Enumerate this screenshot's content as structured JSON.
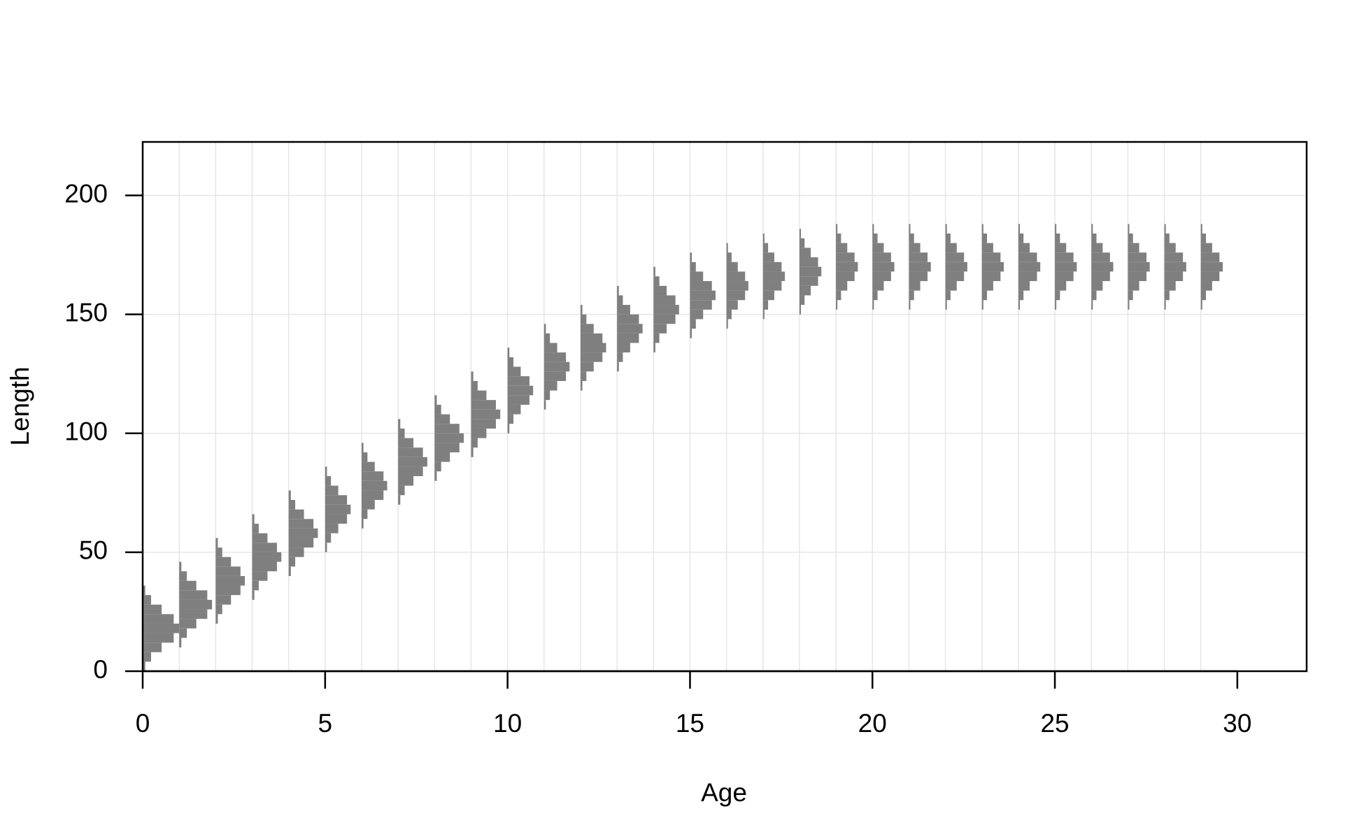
{
  "chart_data": {
    "type": "age-length-histograms",
    "x_label": "Age",
    "y_label": "Length",
    "xlim": [
      0,
      31.9
    ],
    "ylim": [
      0,
      222.5
    ],
    "xticks": [
      0,
      5,
      10,
      15,
      20,
      25,
      30
    ],
    "yticks": [
      0,
      50,
      100,
      150,
      200
    ],
    "grid": true,
    "color": "#7f7f7f",
    "series": [
      {
        "x": 0,
        "bins": [
          0,
          4,
          8,
          12,
          16,
          20,
          24,
          28,
          32,
          36
        ],
        "values": [
          0.07,
          0.23,
          0.52,
          0.85,
          1,
          0.85,
          0.52,
          0.23,
          0.07
        ]
      },
      {
        "x": 1,
        "bins": [
          10,
          14,
          18,
          22,
          26,
          30,
          34,
          38,
          42,
          46
        ],
        "values": [
          0.06,
          0.21,
          0.47,
          0.77,
          0.9,
          0.77,
          0.47,
          0.21,
          0.06
        ]
      },
      {
        "x": 2,
        "bins": [
          20,
          24,
          28,
          32,
          36,
          40,
          44,
          48,
          52,
          56
        ],
        "values": [
          0.06,
          0.18,
          0.42,
          0.68,
          0.8,
          0.68,
          0.42,
          0.18,
          0.06
        ]
      },
      {
        "x": 3,
        "bins": [
          30,
          34,
          38,
          42,
          46,
          50,
          54,
          58,
          62,
          66
        ],
        "values": [
          0.06,
          0.18,
          0.42,
          0.68,
          0.8,
          0.68,
          0.42,
          0.18,
          0.06
        ]
      },
      {
        "x": 4,
        "bins": [
          40,
          44,
          48,
          52,
          56,
          60,
          64,
          68,
          72,
          76
        ],
        "values": [
          0.06,
          0.18,
          0.42,
          0.68,
          0.8,
          0.68,
          0.42,
          0.18,
          0.06
        ]
      },
      {
        "x": 5,
        "bins": [
          50,
          54,
          58,
          62,
          66,
          70,
          74,
          78,
          82,
          86
        ],
        "values": [
          0.05,
          0.16,
          0.36,
          0.6,
          0.7,
          0.6,
          0.36,
          0.16,
          0.05
        ]
      },
      {
        "x": 6,
        "bins": [
          60,
          64,
          68,
          72,
          76,
          80,
          84,
          88,
          92,
          96
        ],
        "values": [
          0.05,
          0.16,
          0.36,
          0.6,
          0.7,
          0.6,
          0.36,
          0.16,
          0.05
        ]
      },
      {
        "x": 7,
        "bins": [
          70,
          74,
          78,
          82,
          86,
          90,
          94,
          98,
          102,
          106
        ],
        "values": [
          0.06,
          0.18,
          0.42,
          0.68,
          0.8,
          0.68,
          0.42,
          0.18,
          0.06
        ]
      },
      {
        "x": 8,
        "bins": [
          80,
          84,
          88,
          92,
          96,
          100,
          104,
          108,
          112,
          116
        ],
        "values": [
          0.06,
          0.18,
          0.42,
          0.68,
          0.8,
          0.68,
          0.42,
          0.18,
          0.06
        ]
      },
      {
        "x": 9,
        "bins": [
          90,
          94,
          98,
          102,
          106,
          110,
          114,
          118,
          122,
          126
        ],
        "values": [
          0.06,
          0.18,
          0.42,
          0.68,
          0.8,
          0.68,
          0.42,
          0.18,
          0.06
        ]
      },
      {
        "x": 10,
        "bins": [
          100,
          104,
          108,
          112,
          116,
          120,
          124,
          128,
          132,
          136
        ],
        "values": [
          0.05,
          0.16,
          0.36,
          0.6,
          0.7,
          0.6,
          0.36,
          0.16,
          0.05
        ]
      },
      {
        "x": 11,
        "bins": [
          110,
          114,
          118,
          122,
          126,
          130,
          134,
          138,
          142,
          146
        ],
        "values": [
          0.05,
          0.16,
          0.36,
          0.6,
          0.7,
          0.6,
          0.36,
          0.16,
          0.05
        ]
      },
      {
        "x": 12,
        "bins": [
          118,
          122,
          126,
          130,
          134,
          138,
          142,
          146,
          150,
          154
        ],
        "values": [
          0.05,
          0.16,
          0.36,
          0.6,
          0.7,
          0.6,
          0.36,
          0.16,
          0.05
        ]
      },
      {
        "x": 13,
        "bins": [
          126,
          130,
          134,
          138,
          142,
          146,
          150,
          154,
          158,
          162
        ],
        "values": [
          0.05,
          0.16,
          0.36,
          0.6,
          0.7,
          0.6,
          0.36,
          0.16,
          0.05
        ]
      },
      {
        "x": 14,
        "bins": [
          134,
          138,
          142,
          146,
          150,
          154,
          158,
          162,
          166,
          170
        ],
        "values": [
          0.05,
          0.16,
          0.36,
          0.6,
          0.7,
          0.6,
          0.36,
          0.16,
          0.05
        ]
      },
      {
        "x": 15,
        "bins": [
          140,
          144,
          148,
          152,
          156,
          160,
          164,
          168,
          172,
          176
        ],
        "values": [
          0.05,
          0.16,
          0.36,
          0.6,
          0.7,
          0.6,
          0.36,
          0.16,
          0.05
        ]
      },
      {
        "x": 16,
        "bins": [
          144,
          148,
          152,
          156,
          160,
          164,
          168,
          172,
          176,
          180
        ],
        "values": [
          0.04,
          0.14,
          0.31,
          0.51,
          0.6,
          0.51,
          0.31,
          0.14,
          0.04
        ]
      },
      {
        "x": 17,
        "bins": [
          148,
          152,
          156,
          160,
          164,
          168,
          172,
          176,
          180,
          184
        ],
        "values": [
          0.04,
          0.14,
          0.31,
          0.51,
          0.6,
          0.51,
          0.31,
          0.14,
          0.04
        ]
      },
      {
        "x": 18,
        "bins": [
          150,
          154,
          158,
          162,
          166,
          170,
          174,
          178,
          182,
          186
        ],
        "values": [
          0.04,
          0.14,
          0.31,
          0.51,
          0.6,
          0.51,
          0.31,
          0.14,
          0.04
        ]
      },
      {
        "x": 19,
        "bins": [
          152,
          156,
          160,
          164,
          168,
          172,
          176,
          180,
          184,
          188
        ],
        "values": [
          0.04,
          0.14,
          0.31,
          0.51,
          0.6,
          0.51,
          0.31,
          0.14,
          0.04
        ]
      },
      {
        "x": 20,
        "bins": [
          152,
          156,
          160,
          164,
          168,
          172,
          176,
          180,
          184,
          188
        ],
        "values": [
          0.04,
          0.14,
          0.31,
          0.51,
          0.6,
          0.51,
          0.31,
          0.14,
          0.04
        ]
      },
      {
        "x": 21,
        "bins": [
          152,
          156,
          160,
          164,
          168,
          172,
          176,
          180,
          184,
          188
        ],
        "values": [
          0.04,
          0.14,
          0.31,
          0.51,
          0.6,
          0.51,
          0.31,
          0.14,
          0.04
        ]
      },
      {
        "x": 22,
        "bins": [
          152,
          156,
          160,
          164,
          168,
          172,
          176,
          180,
          184,
          188
        ],
        "values": [
          0.04,
          0.14,
          0.31,
          0.51,
          0.6,
          0.51,
          0.31,
          0.14,
          0.04
        ]
      },
      {
        "x": 23,
        "bins": [
          152,
          156,
          160,
          164,
          168,
          172,
          176,
          180,
          184,
          188
        ],
        "values": [
          0.04,
          0.14,
          0.31,
          0.51,
          0.6,
          0.51,
          0.31,
          0.14,
          0.04
        ]
      },
      {
        "x": 24,
        "bins": [
          152,
          156,
          160,
          164,
          168,
          172,
          176,
          180,
          184,
          188
        ],
        "values": [
          0.04,
          0.14,
          0.31,
          0.51,
          0.6,
          0.51,
          0.31,
          0.14,
          0.04
        ]
      },
      {
        "x": 25,
        "bins": [
          152,
          156,
          160,
          164,
          168,
          172,
          176,
          180,
          184,
          188
        ],
        "values": [
          0.04,
          0.14,
          0.31,
          0.51,
          0.6,
          0.51,
          0.31,
          0.14,
          0.04
        ]
      },
      {
        "x": 26,
        "bins": [
          152,
          156,
          160,
          164,
          168,
          172,
          176,
          180,
          184,
          188
        ],
        "values": [
          0.04,
          0.14,
          0.31,
          0.51,
          0.6,
          0.51,
          0.31,
          0.14,
          0.04
        ]
      },
      {
        "x": 27,
        "bins": [
          152,
          156,
          160,
          164,
          168,
          172,
          176,
          180,
          184,
          188
        ],
        "values": [
          0.04,
          0.14,
          0.31,
          0.51,
          0.6,
          0.51,
          0.31,
          0.14,
          0.04
        ]
      },
      {
        "x": 28,
        "bins": [
          152,
          156,
          160,
          164,
          168,
          172,
          176,
          180,
          184,
          188
        ],
        "values": [
          0.04,
          0.14,
          0.31,
          0.51,
          0.6,
          0.51,
          0.31,
          0.14,
          0.04
        ]
      },
      {
        "x": 29,
        "bins": [
          152,
          156,
          160,
          164,
          168,
          172,
          176,
          180,
          184,
          188
        ],
        "values": [
          0.04,
          0.14,
          0.31,
          0.51,
          0.6,
          0.51,
          0.31,
          0.14,
          0.04
        ]
      }
    ]
  }
}
